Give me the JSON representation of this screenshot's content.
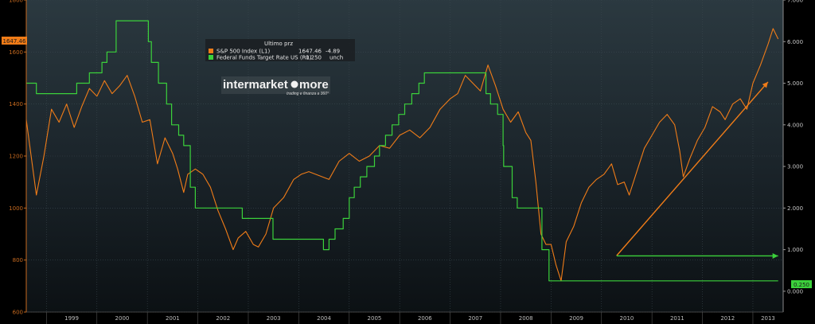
{
  "chart_data": {
    "type": "line",
    "title": "",
    "legend": {
      "header": "Ultimo prz",
      "entries": [
        {
          "label": "S&P 500 Index  (L1)",
          "last": "1647.46",
          "change": "-4.89",
          "color": "#f07c18"
        },
        {
          "label": "Federal Funds Target Rate US  (R1)",
          "last": "0.250",
          "change": "unch",
          "color": "#3bd13b"
        }
      ]
    },
    "watermark": {
      "brand": "intermarket",
      "brand2": "more",
      "tagline": "trading e finanza a 360°"
    },
    "x_axis": {
      "range": [
        1998.6,
        2013.6
      ],
      "ticks": [
        1999,
        2000,
        2001,
        2002,
        2003,
        2004,
        2005,
        2006,
        2007,
        2008,
        2009,
        2010,
        2011,
        2012,
        2013
      ],
      "tick_labels": [
        "1999",
        "2000",
        "2001",
        "2002",
        "2003",
        "2004",
        "2005",
        "2006",
        "2007",
        "2008",
        "2009",
        "2010",
        "2011",
        "2012",
        "2013"
      ]
    },
    "left_axis": {
      "range": [
        600,
        1800
      ],
      "tick_labels": [
        "600",
        "800",
        "1000",
        "1200",
        "1400",
        "1600",
        "1800"
      ]
    },
    "right_axis": {
      "range": [
        -0.5,
        7.0
      ],
      "tick_labels": [
        "0.000",
        "1.000",
        "2.000",
        "3.000",
        "4.000",
        "5.000",
        "6.000",
        "7.000"
      ]
    },
    "current_value_labels": {
      "left": "1647.46",
      "right": "0.250"
    },
    "series": [
      {
        "name": "S&P 500 Index (L1)",
        "axis": "left",
        "color": "#f07c18",
        "x": [
          1998.6,
          1998.8,
          1998.95,
          1999.1,
          1999.25,
          1999.4,
          1999.55,
          1999.7,
          1999.85,
          2000.0,
          2000.15,
          2000.3,
          2000.45,
          2000.6,
          2000.75,
          2000.9,
          2001.05,
          2001.2,
          2001.35,
          2001.5,
          2001.6,
          2001.72,
          2001.8,
          2001.95,
          2002.1,
          2002.25,
          2002.4,
          2002.55,
          2002.7,
          2002.8,
          2002.95,
          2003.1,
          2003.2,
          2003.35,
          2003.5,
          2003.7,
          2003.9,
          2004.05,
          2004.2,
          2004.4,
          2004.6,
          2004.8,
          2005.0,
          2005.2,
          2005.4,
          2005.6,
          2005.8,
          2006.0,
          2006.2,
          2006.4,
          2006.6,
          2006.8,
          2007.0,
          2007.15,
          2007.3,
          2007.45,
          2007.6,
          2007.75,
          2007.9,
          2008.05,
          2008.2,
          2008.35,
          2008.5,
          2008.6,
          2008.7,
          2008.8,
          2008.9,
          2009.0,
          2009.1,
          2009.2,
          2009.3,
          2009.45,
          2009.6,
          2009.75,
          2009.9,
          2010.05,
          2010.2,
          2010.32,
          2010.45,
          2010.55,
          2010.7,
          2010.85,
          2011.0,
          2011.15,
          2011.3,
          2011.45,
          2011.55,
          2011.62,
          2011.75,
          2011.9,
          2012.05,
          2012.2,
          2012.35,
          2012.45,
          2012.6,
          2012.75,
          2012.88,
          2013.0,
          2013.15,
          2013.3,
          2013.4,
          2013.5
        ],
        "values": [
          1340,
          1050,
          1200,
          1380,
          1330,
          1400,
          1310,
          1390,
          1460,
          1430,
          1490,
          1440,
          1470,
          1510,
          1430,
          1330,
          1340,
          1170,
          1270,
          1210,
          1150,
          1060,
          1130,
          1150,
          1130,
          1080,
          990,
          920,
          840,
          885,
          910,
          860,
          850,
          900,
          1000,
          1040,
          1110,
          1130,
          1140,
          1125,
          1110,
          1180,
          1210,
          1180,
          1200,
          1240,
          1230,
          1280,
          1300,
          1270,
          1310,
          1380,
          1420,
          1440,
          1510,
          1480,
          1450,
          1550,
          1470,
          1380,
          1330,
          1370,
          1290,
          1260,
          1100,
          900,
          860,
          860,
          780,
          720,
          870,
          930,
          1020,
          1080,
          1110,
          1130,
          1170,
          1090,
          1100,
          1050,
          1140,
          1230,
          1280,
          1330,
          1360,
          1320,
          1220,
          1120,
          1190,
          1260,
          1310,
          1390,
          1370,
          1340,
          1400,
          1420,
          1380,
          1480,
          1550,
          1630,
          1690,
          1650
        ]
      },
      {
        "name": "Federal Funds Target Rate US (R1)",
        "axis": "right",
        "color": "#3bd13b",
        "step": true,
        "x": [
          1998.6,
          1998.8,
          1999.4,
          1999.6,
          1999.85,
          2000.1,
          2000.2,
          2000.38,
          2001.02,
          2001.08,
          2001.22,
          2001.38,
          2001.48,
          2001.62,
          2001.72,
          2001.85,
          2001.95,
          2002.88,
          2003.49,
          2004.49,
          2004.6,
          2004.72,
          2004.88,
          2005.0,
          2005.1,
          2005.22,
          2005.35,
          2005.5,
          2005.6,
          2005.72,
          2005.85,
          2005.98,
          2006.1,
          2006.24,
          2006.38,
          2006.49,
          2007.71,
          2007.8,
          2007.94,
          2008.05,
          2008.06,
          2008.23,
          2008.33,
          2008.82,
          2008.96,
          2013.5
        ],
        "values": [
          5.0,
          4.75,
          4.75,
          5.0,
          5.25,
          5.5,
          5.75,
          6.5,
          6.0,
          5.5,
          5.0,
          4.5,
          4.0,
          3.75,
          3.5,
          2.5,
          2.0,
          1.75,
          1.25,
          1.0,
          1.25,
          1.5,
          1.75,
          2.25,
          2.5,
          2.75,
          3.0,
          3.25,
          3.5,
          3.75,
          4.0,
          4.25,
          4.5,
          4.75,
          5.0,
          5.25,
          4.75,
          4.5,
          4.25,
          3.5,
          3.0,
          2.25,
          2.0,
          1.0,
          0.25,
          0.25
        ]
      }
    ],
    "annotations": [
      {
        "type": "arrow",
        "color": "#f07c18",
        "from": [
          2010.3,
          817
        ],
        "to": [
          2013.3,
          1485
        ]
      },
      {
        "type": "arrow",
        "color": "#3bd13b",
        "from": [
          2010.3,
          0.85
        ],
        "to": [
          2013.5,
          0.85
        ]
      }
    ]
  }
}
